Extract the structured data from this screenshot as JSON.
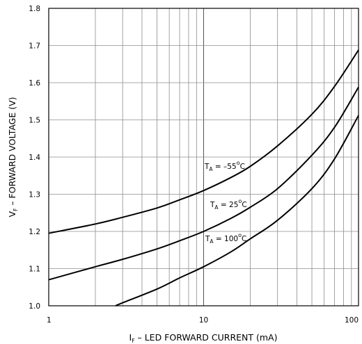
{
  "chart_data": {
    "type": "line",
    "xscale": "log",
    "xlim": [
      1,
      100
    ],
    "ylim": [
      1.0,
      1.8
    ],
    "grid": true,
    "xticks": [
      "1",
      "10",
      "100"
    ],
    "yticks": [
      "1.0",
      "1.1",
      "1.2",
      "1.3",
      "1.4",
      "1.5",
      "1.6",
      "1.7",
      "1.8"
    ],
    "xlabel": {
      "main": "I",
      "sub": "F",
      "rest": " – LED FORWARD CURRENT (mA)"
    },
    "ylabel": {
      "main": "V",
      "sub": "F",
      "rest": " – FORWARD VOLTAGE (V)"
    },
    "series": [
      {
        "name": "T_A = -55°C",
        "label": {
          "main": "T",
          "sub": "A",
          "value": " = –55",
          "deg": "o",
          "unit": "C"
        },
        "x": [
          1,
          2,
          3,
          5,
          7,
          10,
          15,
          20,
          30,
          50,
          70,
          100
        ],
        "y": [
          1.195,
          1.22,
          1.238,
          1.263,
          1.285,
          1.31,
          1.345,
          1.375,
          1.43,
          1.515,
          1.59,
          1.688
        ]
      },
      {
        "name": "T_A = 25°C",
        "label": {
          "main": "T",
          "sub": "A",
          "value": " = 25",
          "deg": "o",
          "unit": "C"
        },
        "x": [
          1,
          2,
          3,
          5,
          7,
          10,
          15,
          20,
          30,
          50,
          70,
          100
        ],
        "y": [
          1.07,
          1.105,
          1.125,
          1.153,
          1.175,
          1.2,
          1.235,
          1.265,
          1.315,
          1.405,
          1.48,
          1.588
        ]
      },
      {
        "name": "T_A = 100°C",
        "label": {
          "main": "T",
          "sub": "A",
          "value": " = 100",
          "deg": "o",
          "unit": "C"
        },
        "x": [
          2.7,
          3,
          5,
          7,
          10,
          15,
          20,
          30,
          50,
          70,
          100
        ],
        "y": [
          1.0,
          1.008,
          1.045,
          1.075,
          1.105,
          1.145,
          1.18,
          1.23,
          1.315,
          1.395,
          1.512
        ]
      }
    ]
  }
}
